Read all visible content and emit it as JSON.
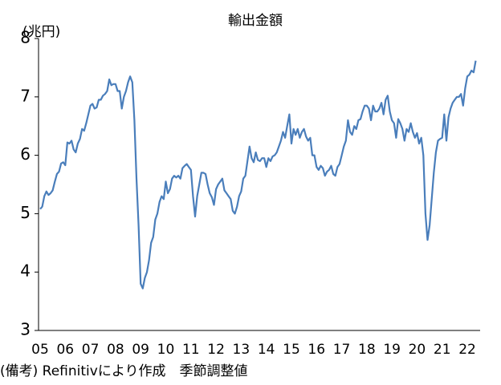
{
  "chart_data": {
    "type": "line",
    "title": "輸出金額",
    "y_label": "(兆円)",
    "note": "(備考) Refinitivにより作成　季節調整値",
    "categories": [
      "05",
      null,
      null,
      null,
      null,
      null,
      null,
      null,
      null,
      null,
      null,
      null,
      "06",
      null,
      null,
      null,
      null,
      null,
      null,
      null,
      null,
      null,
      null,
      null,
      "07",
      null,
      null,
      null,
      null,
      null,
      null,
      null,
      null,
      null,
      null,
      null,
      "08",
      null,
      null,
      null,
      null,
      null,
      null,
      null,
      null,
      null,
      null,
      null,
      "09",
      null,
      null,
      null,
      null,
      null,
      null,
      null,
      null,
      null,
      null,
      null,
      "10",
      null,
      null,
      null,
      null,
      null,
      null,
      null,
      null,
      null,
      null,
      null,
      "11",
      null,
      null,
      null,
      null,
      null,
      null,
      null,
      null,
      null,
      null,
      null,
      "12",
      null,
      null,
      null,
      null,
      null,
      null,
      null,
      null,
      null,
      null,
      null,
      "13",
      null,
      null,
      null,
      null,
      null,
      null,
      null,
      null,
      null,
      null,
      null,
      "14",
      null,
      null,
      null,
      null,
      null,
      null,
      null,
      null,
      null,
      null,
      null,
      "15",
      null,
      null,
      null,
      null,
      null,
      null,
      null,
      null,
      null,
      null,
      null,
      "16",
      null,
      null,
      null,
      null,
      null,
      null,
      null,
      null,
      null,
      null,
      null,
      "17",
      null,
      null,
      null,
      null,
      null,
      null,
      null,
      null,
      null,
      null,
      null,
      "18",
      null,
      null,
      null,
      null,
      null,
      null,
      null,
      null,
      null,
      null,
      null,
      "19",
      null,
      null,
      null,
      null,
      null,
      null,
      null,
      null,
      null,
      null,
      null,
      "20",
      null,
      null,
      null,
      null,
      null,
      null,
      null,
      null,
      null,
      null,
      null,
      "21",
      null,
      null,
      null,
      null,
      null,
      null,
      null,
      null,
      null,
      null,
      null,
      "22",
      null,
      null,
      null,
      null
    ],
    "series": [
      {
        "color": "#4a7ebb",
        "values": [
          5.08,
          5.12,
          5.3,
          5.38,
          5.32,
          5.35,
          5.4,
          5.55,
          5.68,
          5.72,
          5.86,
          5.88,
          5.83,
          6.22,
          6.2,
          6.25,
          6.1,
          6.05,
          6.2,
          6.28,
          6.45,
          6.42,
          6.55,
          6.7,
          6.85,
          6.88,
          6.8,
          6.82,
          6.95,
          6.95,
          7.02,
          7.05,
          7.1,
          7.3,
          7.2,
          7.22,
          7.22,
          7.1,
          7.1,
          6.8,
          7.0,
          7.1,
          7.25,
          7.35,
          7.25,
          6.6,
          5.6,
          4.8,
          3.8,
          3.72,
          3.9,
          4.0,
          4.2,
          4.5,
          4.6,
          4.9,
          5.0,
          5.2,
          5.3,
          5.25,
          5.55,
          5.35,
          5.42,
          5.6,
          5.65,
          5.62,
          5.65,
          5.6,
          5.78,
          5.82,
          5.85,
          5.8,
          5.75,
          5.3,
          4.95,
          5.3,
          5.5,
          5.7,
          5.7,
          5.68,
          5.5,
          5.35,
          5.28,
          5.15,
          5.42,
          5.5,
          5.55,
          5.6,
          5.4,
          5.35,
          5.3,
          5.25,
          5.05,
          5.0,
          5.12,
          5.3,
          5.38,
          5.6,
          5.65,
          5.9,
          6.15,
          5.95,
          5.88,
          6.05,
          5.92,
          5.9,
          5.95,
          5.95,
          5.8,
          5.95,
          5.9,
          5.98,
          6.0,
          6.05,
          6.15,
          6.25,
          6.4,
          6.3,
          6.5,
          6.7,
          6.2,
          6.45,
          6.35,
          6.45,
          6.3,
          6.4,
          6.45,
          6.32,
          6.25,
          6.3,
          6.0,
          6.0,
          5.8,
          5.75,
          5.82,
          5.78,
          5.65,
          5.72,
          5.75,
          5.82,
          5.68,
          5.65,
          5.8,
          5.85,
          6.0,
          6.15,
          6.25,
          6.6,
          6.4,
          6.35,
          6.5,
          6.45,
          6.6,
          6.62,
          6.75,
          6.85,
          6.85,
          6.8,
          6.6,
          6.85,
          6.75,
          6.75,
          6.8,
          6.9,
          6.7,
          6.95,
          7.02,
          6.75,
          6.6,
          6.55,
          6.3,
          6.62,
          6.55,
          6.45,
          6.25,
          6.45,
          6.4,
          6.55,
          6.4,
          6.3,
          6.38,
          6.2,
          6.3,
          6.0,
          5.0,
          4.55,
          4.8,
          5.25,
          5.7,
          6.05,
          6.25,
          6.28,
          6.3,
          6.7,
          6.25,
          6.65,
          6.8,
          6.9,
          6.95,
          7.0,
          7.0,
          7.05,
          6.85,
          7.15,
          7.35,
          7.38,
          7.45,
          7.42,
          7.62
        ]
      }
    ],
    "ylim": [
      3,
      8
    ],
    "yticks": [
      3,
      4,
      5,
      6,
      7,
      8
    ]
  }
}
